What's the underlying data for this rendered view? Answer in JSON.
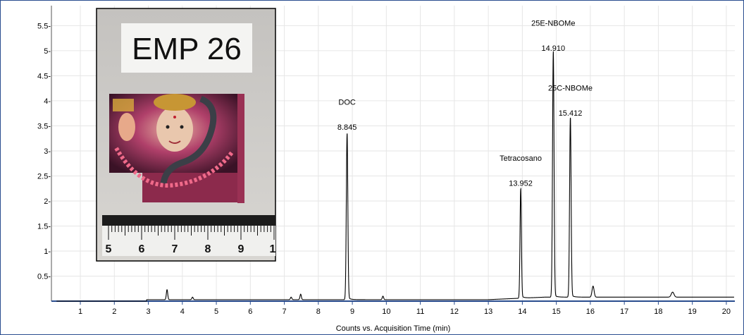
{
  "chart_data": {
    "type": "line",
    "title": "",
    "xlabel": "Counts vs. Acquisition Time (min)",
    "ylabel": "",
    "xlim": [
      0.15,
      20.25
    ],
    "ylim": [
      0,
      5.9
    ],
    "x_ticks": [
      1,
      2,
      3,
      4,
      5,
      6,
      7,
      8,
      9,
      10,
      11,
      12,
      13,
      14,
      15,
      16,
      17,
      18,
      19,
      20
    ],
    "y_ticks": [
      0.5,
      1,
      1.5,
      2,
      2.5,
      3,
      3.5,
      4,
      4.5,
      5,
      5.5
    ],
    "y_tick_labels": [
      "0.5-",
      "1-",
      "1.5-",
      "2-",
      "2.5-",
      "3-",
      "3.5-",
      "4-",
      "4.5-",
      "5-",
      "5.5-"
    ],
    "baseline": 0.03,
    "grid": true,
    "line_color": "#000000",
    "peaks": [
      {
        "x": 3.55,
        "y": 0.2,
        "width": 0.02
      },
      {
        "x": 4.3,
        "y": 0.05,
        "width": 0.02
      },
      {
        "x": 7.2,
        "y": 0.05,
        "width": 0.02
      },
      {
        "x": 7.48,
        "y": 0.11,
        "width": 0.02
      },
      {
        "x": 8.845,
        "y": 3.3,
        "width": 0.022
      },
      {
        "x": 9.9,
        "y": 0.07,
        "width": 0.02
      },
      {
        "x": 13.952,
        "y": 2.18,
        "width": 0.02
      },
      {
        "x": 14.91,
        "y": 4.88,
        "width": 0.022
      },
      {
        "x": 15.412,
        "y": 3.58,
        "width": 0.022
      },
      {
        "x": 16.08,
        "y": 0.22,
        "width": 0.03
      },
      {
        "x": 18.42,
        "y": 0.1,
        "width": 0.04
      }
    ],
    "annotations": [
      {
        "rt": 8.845,
        "rt_label": "8.845",
        "name": "DOC",
        "rt_y": 3.42,
        "name_y": 3.92
      },
      {
        "rt": 13.952,
        "rt_label": "13.952",
        "name": "Tetracosano",
        "rt_y": 2.3,
        "name_y": 2.8
      },
      {
        "rt": 14.91,
        "rt_label": "14.910",
        "name": "25E-NBOMe",
        "rt_y": 5.0,
        "name_y": 5.5
      },
      {
        "rt": 15.412,
        "rt_label": "15.412",
        "name": "25C-NBOMe",
        "rt_y": 3.7,
        "name_y": 4.2
      }
    ]
  },
  "inset_photo": {
    "label_text": "EMP 26",
    "ruler_numbers": [
      "5",
      "6",
      "7",
      "8",
      "9",
      "1"
    ]
  }
}
